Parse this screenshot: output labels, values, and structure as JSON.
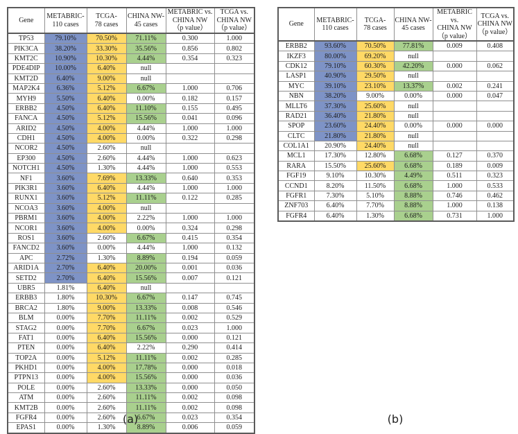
{
  "colors": {
    "metabric_fill": "#7E93C6",
    "tcga_fill": "#FFD966",
    "china_nw_fill": "#A9D08E",
    "significant_p_text": "#E00000"
  },
  "tables": {
    "a": {
      "caption": "(a)",
      "columns": [
        "Gene",
        "METABRIC-\n110 cases",
        "TCGA-\n78 cases",
        "CHINA NW-\n45 cases",
        "METABRIC vs.\nCHINA NW\n（p value）",
        "TCGA vs.\nCHINA NW\n（p value）"
      ],
      "rows": [
        {
          "g": "TP53",
          "m": "79.10%",
          "mf": true,
          "t": "70.50%",
          "tf": true,
          "c": "71.11%",
          "cf": true,
          "p1": "0.300",
          "p1r": false,
          "p2": "1.000",
          "p2r": false
        },
        {
          "g": "PIK3CA",
          "m": "38.20%",
          "mf": true,
          "t": "33.30%",
          "tf": true,
          "c": "35.56%",
          "cf": true,
          "p1": "0.856",
          "p1r": false,
          "p2": "0.802",
          "p2r": false
        },
        {
          "g": "KMT2C",
          "m": "10.90%",
          "mf": true,
          "t": "10.30%",
          "tf": true,
          "c": "4.44%",
          "cf": true,
          "p1": "0.354",
          "p1r": false,
          "p2": "0.323",
          "p2r": false
        },
        {
          "g": "PDE4DIP",
          "m": "10.00%",
          "mf": true,
          "t": "6.40%",
          "tf": true,
          "c": "null",
          "cf": false,
          "p1": "",
          "p1r": false,
          "p2": "",
          "p2r": false
        },
        {
          "g": "KMT2D",
          "m": "6.40%",
          "mf": true,
          "t": "9.00%",
          "tf": true,
          "c": "null",
          "cf": false,
          "p1": "",
          "p1r": false,
          "p2": "",
          "p2r": false
        },
        {
          "g": "MAP2K4",
          "m": "6.36%",
          "mf": true,
          "t": "5.12%",
          "tf": true,
          "c": "6.67%",
          "cf": true,
          "p1": "1.000",
          "p1r": false,
          "p2": "0.706",
          "p2r": false
        },
        {
          "g": "MYH9",
          "m": "5.50%",
          "mf": true,
          "t": "6.40%",
          "tf": true,
          "c": "0.00%",
          "cf": false,
          "p1": "0.182",
          "p1r": false,
          "p2": "0.157",
          "p2r": false
        },
        {
          "g": "ERBB2",
          "m": "4.50%",
          "mf": true,
          "t": "6.40%",
          "tf": true,
          "c": "11.10%",
          "cf": true,
          "p1": "0.155",
          "p1r": false,
          "p2": "0.495",
          "p2r": false
        },
        {
          "g": "FANCA",
          "m": "4.50%",
          "mf": true,
          "t": "5.12%",
          "tf": true,
          "c": "15.56%",
          "cf": true,
          "p1": "0.041",
          "p1r": true,
          "p2": "0.096",
          "p2r": false
        },
        {
          "g": "ARID2",
          "m": "4.50%",
          "mf": true,
          "t": "4.00%",
          "tf": true,
          "c": "4.44%",
          "cf": false,
          "p1": "1.000",
          "p1r": false,
          "p2": "1.000",
          "p2r": false
        },
        {
          "g": "CDH1",
          "m": "4.50%",
          "mf": true,
          "t": "4.00%",
          "tf": true,
          "c": "0.00%",
          "cf": false,
          "p1": "0.322",
          "p1r": false,
          "p2": "0.298",
          "p2r": false
        },
        {
          "g": "NCOR2",
          "m": "4.50%",
          "mf": true,
          "t": "2.60%",
          "tf": false,
          "c": "null",
          "cf": false,
          "p1": "",
          "p1r": false,
          "p2": "",
          "p2r": false
        },
        {
          "g": "EP300",
          "m": "4.50%",
          "mf": true,
          "t": "2.60%",
          "tf": false,
          "c": "4.44%",
          "cf": false,
          "p1": "1.000",
          "p1r": false,
          "p2": "0.623",
          "p2r": false
        },
        {
          "g": "NOTCH1",
          "m": "4.50%",
          "mf": true,
          "t": "1.30%",
          "tf": false,
          "c": "4.44%",
          "cf": false,
          "p1": "1.000",
          "p1r": false,
          "p2": "0.553",
          "p2r": false
        },
        {
          "g": "NF1",
          "m": "3.60%",
          "mf": true,
          "t": "7.69%",
          "tf": true,
          "c": "13.33%",
          "cf": true,
          "p1": "0.640",
          "p1r": false,
          "p2": "0.353",
          "p2r": false
        },
        {
          "g": "PIK3R1",
          "m": "3.60%",
          "mf": true,
          "t": "6.40%",
          "tf": true,
          "c": "4.44%",
          "cf": false,
          "p1": "1.000",
          "p1r": false,
          "p2": "1.000",
          "p2r": false
        },
        {
          "g": "RUNX1",
          "m": "3.60%",
          "mf": true,
          "t": "5.12%",
          "tf": true,
          "c": "11.11%",
          "cf": true,
          "p1": "0.122",
          "p1r": false,
          "p2": "0.285",
          "p2r": false
        },
        {
          "g": "NCOA3",
          "m": "3.60%",
          "mf": true,
          "t": "4.00%",
          "tf": true,
          "c": "null",
          "cf": false,
          "p1": "",
          "p1r": false,
          "p2": "",
          "p2r": false
        },
        {
          "g": "PBRM1",
          "m": "3.60%",
          "mf": true,
          "t": "4.00%",
          "tf": true,
          "c": "2.22%",
          "cf": false,
          "p1": "1.000",
          "p1r": false,
          "p2": "1.000",
          "p2r": false
        },
        {
          "g": "NCOR1",
          "m": "3.60%",
          "mf": true,
          "t": "4.00%",
          "tf": true,
          "c": "0.00%",
          "cf": false,
          "p1": "0.324",
          "p1r": false,
          "p2": "0.298",
          "p2r": false
        },
        {
          "g": "ROS1",
          "m": "3.60%",
          "mf": true,
          "t": "2.60%",
          "tf": false,
          "c": "6.67%",
          "cf": true,
          "p1": "0.415",
          "p1r": false,
          "p2": "0.354",
          "p2r": false
        },
        {
          "g": "FANCD2",
          "m": "3.60%",
          "mf": true,
          "t": "0.00%",
          "tf": false,
          "c": "4.44%",
          "cf": false,
          "p1": "1.000",
          "p1r": false,
          "p2": "0.132",
          "p2r": false
        },
        {
          "g": "APC",
          "m": "2.72%",
          "mf": true,
          "t": "1.30%",
          "tf": false,
          "c": "8.89%",
          "cf": true,
          "p1": "0.194",
          "p1r": false,
          "p2": "0.059",
          "p2r": false
        },
        {
          "g": "ARID1A",
          "m": "2.70%",
          "mf": true,
          "t": "6.40%",
          "tf": true,
          "c": "20.00%",
          "cf": true,
          "p1": "0.001",
          "p1r": true,
          "p2": "0.036",
          "p2r": true
        },
        {
          "g": "SETD2",
          "m": "2.70%",
          "mf": true,
          "t": "6.40%",
          "tf": true,
          "c": "15.56%",
          "cf": true,
          "p1": "0.007",
          "p1r": true,
          "p2": "0.121",
          "p2r": false
        },
        {
          "g": "UBR5",
          "m": "1.81%",
          "mf": false,
          "t": "6.40%",
          "tf": true,
          "c": "null",
          "cf": false,
          "p1": "",
          "p1r": false,
          "p2": "",
          "p2r": false
        },
        {
          "g": "ERBB3",
          "m": "1.80%",
          "mf": false,
          "t": "10.30%",
          "tf": true,
          "c": "6.67%",
          "cf": true,
          "p1": "0.147",
          "p1r": false,
          "p2": "0.745",
          "p2r": false
        },
        {
          "g": "BRCA2",
          "m": "1.80%",
          "mf": false,
          "t": "9.00%",
          "tf": true,
          "c": "13.33%",
          "cf": true,
          "p1": "0.008",
          "p1r": true,
          "p2": "0.546",
          "p2r": false
        },
        {
          "g": "BLM",
          "m": "0.00%",
          "mf": false,
          "t": "7.70%",
          "tf": true,
          "c": "11.11%",
          "cf": true,
          "p1": "0.002",
          "p1r": true,
          "p2": "0.529",
          "p2r": false
        },
        {
          "g": "STAG2",
          "m": "0.00%",
          "mf": false,
          "t": "7.70%",
          "tf": true,
          "c": "6.67%",
          "cf": true,
          "p1": "0.023",
          "p1r": true,
          "p2": "1.000",
          "p2r": false
        },
        {
          "g": "FAT1",
          "m": "0.00%",
          "mf": false,
          "t": "6.40%",
          "tf": true,
          "c": "15.56%",
          "cf": true,
          "p1": "0.000",
          "p1r": true,
          "p2": "0.121",
          "p2r": false
        },
        {
          "g": "PTEN",
          "m": "0.00%",
          "mf": false,
          "t": "6.40%",
          "tf": true,
          "c": "2.22%",
          "cf": false,
          "p1": "0.290",
          "p1r": false,
          "p2": "0.414",
          "p2r": false
        },
        {
          "g": "TOP2A",
          "m": "0.00%",
          "mf": false,
          "t": "5.12%",
          "tf": true,
          "c": "11.11%",
          "cf": true,
          "p1": "0.002",
          "p1r": true,
          "p2": "0.285",
          "p2r": false
        },
        {
          "g": "PKHD1",
          "m": "0.00%",
          "mf": false,
          "t": "4.00%",
          "tf": true,
          "c": "17.78%",
          "cf": true,
          "p1": "0.000",
          "p1r": true,
          "p2": "0.018",
          "p2r": true
        },
        {
          "g": "PTPN13",
          "m": "0.00%",
          "mf": false,
          "t": "4.00%",
          "tf": true,
          "c": "15.56%",
          "cf": true,
          "p1": "0.000",
          "p1r": true,
          "p2": "0.036",
          "p2r": true
        },
        {
          "g": "POLE",
          "m": "0.00%",
          "mf": false,
          "t": "2.60%",
          "tf": false,
          "c": "13.33%",
          "cf": true,
          "p1": "0.000",
          "p1r": true,
          "p2": "0.050",
          "p2r": false
        },
        {
          "g": "ATM",
          "m": "0.00%",
          "mf": false,
          "t": "2.60%",
          "tf": false,
          "c": "11.11%",
          "cf": true,
          "p1": "0.002",
          "p1r": true,
          "p2": "0.098",
          "p2r": false
        },
        {
          "g": "KMT2B",
          "m": "0.00%",
          "mf": false,
          "t": "2.60%",
          "tf": false,
          "c": "11.11%",
          "cf": true,
          "p1": "0.002",
          "p1r": true,
          "p2": "0.098",
          "p2r": false
        },
        {
          "g": "FGFR4",
          "m": "0.00%",
          "mf": false,
          "t": "2.60%",
          "tf": false,
          "c": "6.67%",
          "cf": true,
          "p1": "0.023",
          "p1r": true,
          "p2": "0.354",
          "p2r": false
        },
        {
          "g": "EPAS1",
          "m": "0.00%",
          "mf": false,
          "t": "1.30%",
          "tf": false,
          "c": "8.89%",
          "cf": true,
          "p1": "0.006",
          "p1r": true,
          "p2": "0.059",
          "p2r": false
        }
      ]
    },
    "b": {
      "caption": "(b)",
      "columns": [
        "Gene",
        "METABRIC-\n110 cases",
        "TCGA-\n78 cases",
        "CHINA NW-\n45 cases",
        "METABRIC vs.\nCHINA NW\n（p value）",
        "TCGA vs.\nCHINA NW\n（p value）"
      ],
      "rows": [
        {
          "g": "ERBB2",
          "m": "93.60%",
          "mf": true,
          "t": "70.50%",
          "tf": true,
          "c": "77.81%",
          "cf": true,
          "p1": "0.009",
          "p1r": true,
          "p2": "0.408",
          "p2r": false
        },
        {
          "g": "IKZF3",
          "m": "80.00%",
          "mf": true,
          "t": "69.20%",
          "tf": true,
          "c": "null",
          "cf": false,
          "p1": "",
          "p1r": false,
          "p2": "",
          "p2r": false
        },
        {
          "g": "CDK12",
          "m": "79.10%",
          "mf": true,
          "t": "60.30%",
          "tf": true,
          "c": "42.20%",
          "cf": true,
          "p1": "0.000",
          "p1r": true,
          "p2": "0.062",
          "p2r": false
        },
        {
          "g": "LASP1",
          "m": "40.90%",
          "mf": true,
          "t": "29.50%",
          "tf": true,
          "c": "null",
          "cf": false,
          "p1": "",
          "p1r": false,
          "p2": "",
          "p2r": false
        },
        {
          "g": "MYC",
          "m": "39.10%",
          "mf": true,
          "t": "23.10%",
          "tf": true,
          "c": "13.37%",
          "cf": true,
          "p1": "0.002",
          "p1r": true,
          "p2": "0.241",
          "p2r": false
        },
        {
          "g": "NBN",
          "m": "38.20%",
          "mf": true,
          "t": "9.00%",
          "tf": false,
          "c": "0.00%",
          "cf": false,
          "p1": "0.000",
          "p1r": true,
          "p2": "0.047",
          "p2r": true
        },
        {
          "g": "MLLT6",
          "m": "37.30%",
          "mf": true,
          "t": "25.60%",
          "tf": true,
          "c": "null",
          "cf": false,
          "p1": "",
          "p1r": false,
          "p2": "",
          "p2r": false
        },
        {
          "g": "RAD21",
          "m": "36.40%",
          "mf": true,
          "t": "21.80%",
          "tf": true,
          "c": "null",
          "cf": false,
          "p1": "",
          "p1r": false,
          "p2": "",
          "p2r": false
        },
        {
          "g": "SPOP",
          "m": "23.60%",
          "mf": true,
          "t": "24.40%",
          "tf": true,
          "c": "0.00%",
          "cf": false,
          "p1": "0.000",
          "p1r": true,
          "p2": "0.000",
          "p2r": true
        },
        {
          "g": "CLTC",
          "m": "21.80%",
          "mf": true,
          "t": "21.80%",
          "tf": true,
          "c": "null",
          "cf": false,
          "p1": "",
          "p1r": false,
          "p2": "",
          "p2r": false
        },
        {
          "g": "COL1A1",
          "m": "20.90%",
          "mf": false,
          "t": "24.40%",
          "tf": true,
          "c": "null",
          "cf": false,
          "p1": "",
          "p1r": false,
          "p2": "",
          "p2r": false
        },
        {
          "g": "MCL1",
          "m": "17.30%",
          "mf": false,
          "t": "12.80%",
          "tf": false,
          "c": "6.68%",
          "cf": true,
          "p1": "0.127",
          "p1r": false,
          "p2": "0.370",
          "p2r": false
        },
        {
          "g": "RARA",
          "m": "15.50%",
          "mf": false,
          "t": "25.60%",
          "tf": true,
          "c": "6.68%",
          "cf": true,
          "p1": "0.189",
          "p1r": false,
          "p2": "0.009",
          "p2r": true
        },
        {
          "g": "FGF19",
          "m": "9.10%",
          "mf": false,
          "t": "10.30%",
          "tf": false,
          "c": "4.49%",
          "cf": true,
          "p1": "0.511",
          "p1r": false,
          "p2": "0.323",
          "p2r": false
        },
        {
          "g": "CCND1",
          "m": "8.20%",
          "mf": false,
          "t": "11.50%",
          "tf": false,
          "c": "6.68%",
          "cf": true,
          "p1": "1.000",
          "p1r": false,
          "p2": "0.533",
          "p2r": false
        },
        {
          "g": "FGFR1",
          "m": "7.30%",
          "mf": false,
          "t": "5.10%",
          "tf": false,
          "c": "8.88%",
          "cf": true,
          "p1": "0.746",
          "p1r": false,
          "p2": "0.462",
          "p2r": false
        },
        {
          "g": "ZNF703",
          "m": "6.40%",
          "mf": false,
          "t": "7.70%",
          "tf": false,
          "c": "8.88%",
          "cf": true,
          "p1": "1.000",
          "p1r": false,
          "p2": "0.138",
          "p2r": false
        },
        {
          "g": "FGFR4",
          "m": "6.40%",
          "mf": false,
          "t": "1.30%",
          "tf": false,
          "c": "6.68%",
          "cf": true,
          "p1": "0.731",
          "p1r": false,
          "p2": "1.000",
          "p2r": false
        }
      ]
    }
  }
}
